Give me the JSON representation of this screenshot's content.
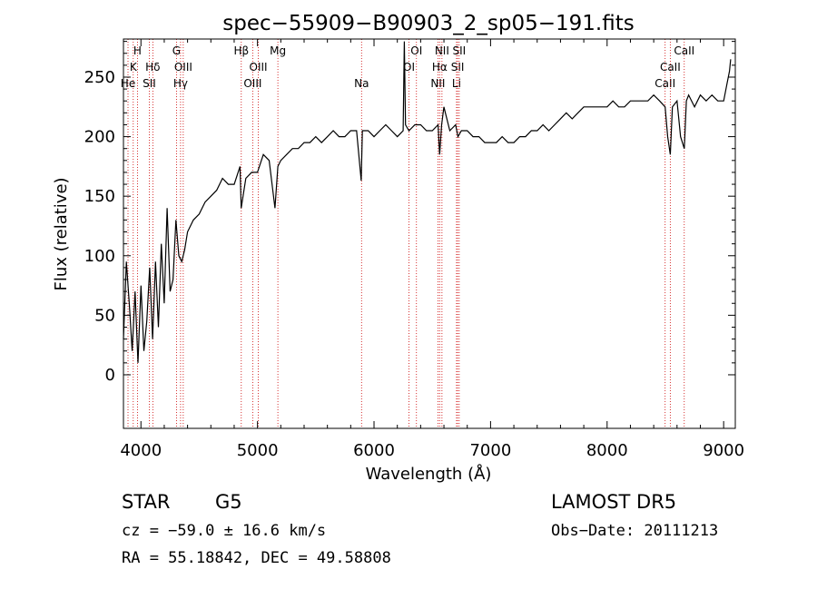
{
  "chart_data": {
    "type": "line",
    "title": "spec−55909−B90903_2_sp05−191.fits",
    "xlabel": "Wavelength (Å)",
    "ylabel": "Flux (relative)",
    "xlim": [
      3850,
      9100
    ],
    "ylim": [
      -45,
      282
    ],
    "xticks": [
      4000,
      5000,
      6000,
      7000,
      8000,
      9000
    ],
    "yticks": [
      0,
      50,
      100,
      150,
      200,
      250
    ],
    "grid": false,
    "line_color": "#000000",
    "marker_color": "#cc0000",
    "series": [
      {
        "x": [
          3850,
          3875,
          3900,
          3925,
          3950,
          3975,
          4000,
          4025,
          4050,
          4075,
          4100,
          4125,
          4150,
          4175,
          4200,
          4225,
          4250,
          4275,
          4300,
          4325,
          4350,
          4375,
          4400,
          4450,
          4500,
          4550,
          4600,
          4650,
          4700,
          4750,
          4800,
          4850,
          4860,
          4900,
          4950,
          5000,
          5050,
          5100,
          5150,
          5175,
          5200,
          5250,
          5300,
          5350,
          5400,
          5450,
          5500,
          5550,
          5600,
          5650,
          5700,
          5750,
          5800,
          5850,
          5890,
          5900,
          5950,
          6000,
          6050,
          6100,
          6150,
          6200,
          6250,
          6260,
          6270,
          6300,
          6350,
          6400,
          6450,
          6500,
          6550,
          6563,
          6580,
          6600,
          6650,
          6700,
          6720,
          6750,
          6800,
          6850,
          6900,
          6950,
          7000,
          7050,
          7100,
          7150,
          7200,
          7250,
          7300,
          7350,
          7400,
          7450,
          7500,
          7550,
          7600,
          7650,
          7700,
          7750,
          7800,
          7850,
          7900,
          7950,
          8000,
          8050,
          8100,
          8150,
          8200,
          8250,
          8300,
          8350,
          8400,
          8450,
          8498,
          8520,
          8542,
          8560,
          8600,
          8630,
          8662,
          8680,
          8700,
          8750,
          8800,
          8850,
          8900,
          8950,
          9000,
          9030,
          9050,
          9060
        ],
        "y": [
          30,
          95,
          60,
          20,
          70,
          10,
          75,
          20,
          45,
          90,
          30,
          95,
          40,
          110,
          60,
          140,
          70,
          80,
          130,
          100,
          95,
          105,
          120,
          130,
          135,
          145,
          150,
          155,
          165,
          160,
          160,
          175,
          140,
          165,
          170,
          170,
          185,
          180,
          140,
          175,
          180,
          185,
          190,
          190,
          195,
          195,
          200,
          195,
          200,
          205,
          200,
          200,
          205,
          205,
          163,
          205,
          205,
          200,
          205,
          210,
          205,
          200,
          205,
          280,
          210,
          205,
          210,
          210,
          205,
          205,
          210,
          185,
          210,
          225,
          205,
          210,
          200,
          205,
          205,
          200,
          200,
          195,
          195,
          195,
          200,
          195,
          195,
          200,
          200,
          205,
          205,
          210,
          205,
          210,
          215,
          220,
          215,
          220,
          225,
          225,
          225,
          225,
          225,
          230,
          225,
          225,
          230,
          230,
          230,
          230,
          235,
          230,
          225,
          200,
          185,
          225,
          230,
          200,
          190,
          230,
          235,
          225,
          235,
          230,
          235,
          230,
          230,
          245,
          255,
          265
        ]
      }
    ],
    "lines": [
      {
        "wave": 3889,
        "label": "He",
        "row": 3
      },
      {
        "wave": 3934,
        "label": "K",
        "row": 2
      },
      {
        "wave": 3970,
        "label": "H",
        "row": 1
      },
      {
        "wave": 4072,
        "label": "SII",
        "row": 3
      },
      {
        "wave": 4102,
        "label": "Hδ",
        "row": 2
      },
      {
        "wave": 4305,
        "label": "G",
        "row": 1
      },
      {
        "wave": 4340,
        "label": "Hγ",
        "row": 3
      },
      {
        "wave": 4363,
        "label": "OIII",
        "row": 2
      },
      {
        "wave": 4861,
        "label": "Hβ",
        "row": 1
      },
      {
        "wave": 4959,
        "label": "OIII",
        "row": 3
      },
      {
        "wave": 5007,
        "label": "OIII",
        "row": 2
      },
      {
        "wave": 5175,
        "label": "Mg",
        "row": 1
      },
      {
        "wave": 5893,
        "label": "Na",
        "row": 3
      },
      {
        "wave": 6300,
        "label": "OI",
        "row": 2
      },
      {
        "wave": 6364,
        "label": "OI",
        "row": 1
      },
      {
        "wave": 6548,
        "label": "NII",
        "row": 3
      },
      {
        "wave": 6563,
        "label": "Hα",
        "row": 2
      },
      {
        "wave": 6583,
        "label": "NII",
        "row": 1
      },
      {
        "wave": 6708,
        "label": "Li",
        "row": 3
      },
      {
        "wave": 6717,
        "label": "SII",
        "row": 2
      },
      {
        "wave": 6731,
        "label": "SII",
        "row": 1
      },
      {
        "wave": 8498,
        "label": "CaII",
        "row": 3
      },
      {
        "wave": 8542,
        "label": "CaII",
        "row": 2
      },
      {
        "wave": 8662,
        "label": "CaII",
        "row": 1
      }
    ]
  },
  "info": {
    "object_class": "STAR",
    "subclass": "G5",
    "survey": "LAMOST DR5",
    "cz": "cz = −59.0 ± 16.6 km/s",
    "obs_date": "Obs−Date: 20111213",
    "coords": "RA =  55.18842, DEC =  49.58808"
  }
}
